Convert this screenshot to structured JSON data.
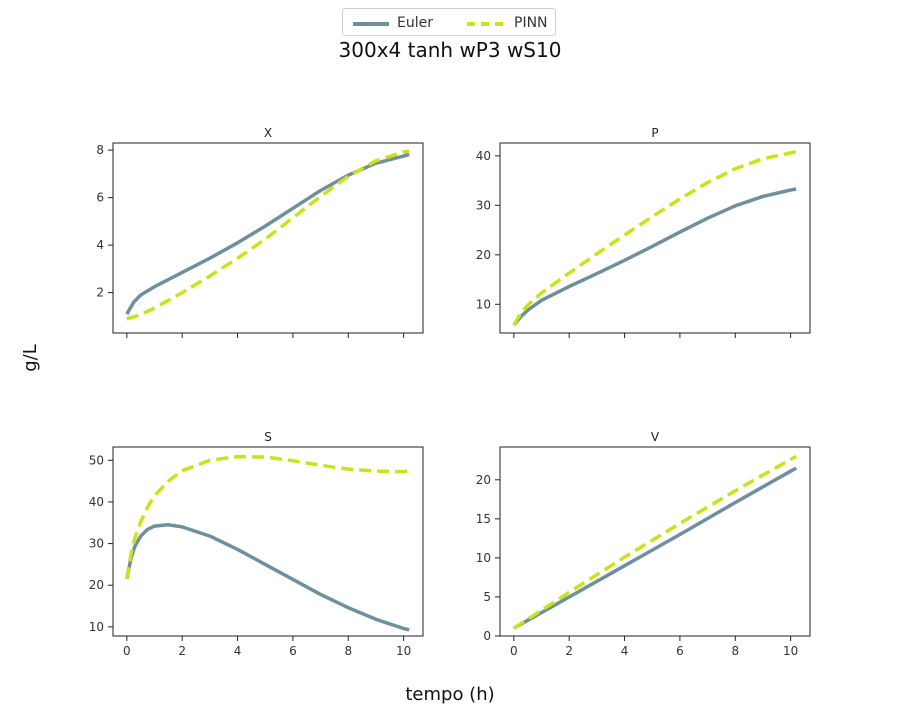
{
  "figure": {
    "title": "300x4 tanh wP3 wS10",
    "xlabel": "tempo (h)",
    "ylabel": "g/L",
    "legend": {
      "placement": "top-center",
      "entries": [
        {
          "label": "Euler",
          "color": "#6f8f9d",
          "style": "solid"
        },
        {
          "label": "PINN",
          "color": "#c8e319",
          "style": "dashed"
        }
      ]
    }
  },
  "chart_data": [
    {
      "type": "line",
      "title": "X",
      "xlim": [
        -0.5,
        10.7
      ],
      "ylim": [
        0.3,
        8.3
      ],
      "xticks": [
        0,
        2,
        4,
        6,
        8,
        10
      ],
      "show_xticklabels": false,
      "yticks": [
        2,
        4,
        6,
        8
      ],
      "x": [
        0,
        0.25,
        0.5,
        1,
        2,
        3,
        4,
        5,
        6,
        7,
        8,
        9,
        10,
        10.2
      ],
      "series": [
        {
          "name": "Euler",
          "values": [
            1.1,
            1.6,
            1.9,
            2.25,
            2.85,
            3.45,
            4.1,
            4.8,
            5.55,
            6.3,
            6.95,
            7.45,
            7.75,
            7.82
          ]
        },
        {
          "name": "PINN",
          "values": [
            0.9,
            0.98,
            1.08,
            1.35,
            2.0,
            2.7,
            3.45,
            4.25,
            5.15,
            6.05,
            6.9,
            7.55,
            7.92,
            7.95
          ]
        }
      ]
    },
    {
      "type": "line",
      "title": "P",
      "xlim": [
        -0.5,
        10.7
      ],
      "ylim": [
        4.2,
        42.6
      ],
      "xticks": [
        0,
        2,
        4,
        6,
        8,
        10
      ],
      "show_xticklabels": false,
      "yticks": [
        10,
        20,
        30,
        40
      ],
      "x": [
        0,
        0.25,
        0.5,
        1,
        2,
        3,
        4,
        5,
        6,
        7,
        8,
        9,
        10,
        10.2
      ],
      "series": [
        {
          "name": "Euler",
          "values": [
            5.8,
            7.5,
            8.8,
            10.8,
            13.6,
            16.2,
            18.9,
            21.7,
            24.6,
            27.4,
            29.9,
            31.8,
            33.1,
            33.3
          ]
        },
        {
          "name": "PINN",
          "values": [
            5.8,
            8.2,
            9.8,
            12.3,
            16.3,
            20.2,
            24.0,
            27.7,
            31.3,
            34.6,
            37.4,
            39.4,
            40.6,
            40.8
          ]
        }
      ]
    },
    {
      "type": "line",
      "title": "S",
      "xlim": [
        -0.5,
        10.7
      ],
      "ylim": [
        7.8,
        53.2
      ],
      "xticks": [
        0,
        2,
        4,
        6,
        8,
        10
      ],
      "show_xticklabels": true,
      "yticks": [
        10,
        20,
        30,
        40,
        50
      ],
      "x": [
        0,
        0.15,
        0.3,
        0.5,
        0.75,
        1,
        1.5,
        2,
        3,
        4,
        5,
        6,
        7,
        8,
        9,
        10,
        10.2
      ],
      "series": [
        {
          "name": "Euler",
          "values": [
            21.5,
            26.5,
            29.5,
            31.8,
            33.4,
            34.2,
            34.5,
            34.0,
            31.8,
            28.6,
            25.0,
            21.4,
            17.8,
            14.6,
            11.8,
            9.6,
            9.3
          ]
        },
        {
          "name": "PINN",
          "values": [
            21.5,
            27.5,
            31.5,
            35.2,
            38.8,
            41.5,
            45.0,
            47.5,
            50.0,
            50.9,
            50.8,
            49.9,
            48.8,
            47.9,
            47.4,
            47.3,
            47.4
          ]
        }
      ]
    },
    {
      "type": "line",
      "title": "V",
      "xlim": [
        -0.5,
        10.7
      ],
      "ylim": [
        0,
        24.2
      ],
      "xticks": [
        0,
        2,
        4,
        6,
        8,
        10
      ],
      "show_xticklabels": true,
      "yticks": [
        0,
        5,
        10,
        15,
        20
      ],
      "x": [
        0,
        2,
        4,
        6,
        8,
        10,
        10.2
      ],
      "series": [
        {
          "name": "Euler",
          "values": [
            1.0,
            5.0,
            9.0,
            13.0,
            17.1,
            21.1,
            21.5
          ]
        },
        {
          "name": "PINN",
          "values": [
            1.0,
            5.6,
            10.1,
            14.4,
            18.6,
            22.6,
            23.0
          ]
        }
      ]
    }
  ]
}
